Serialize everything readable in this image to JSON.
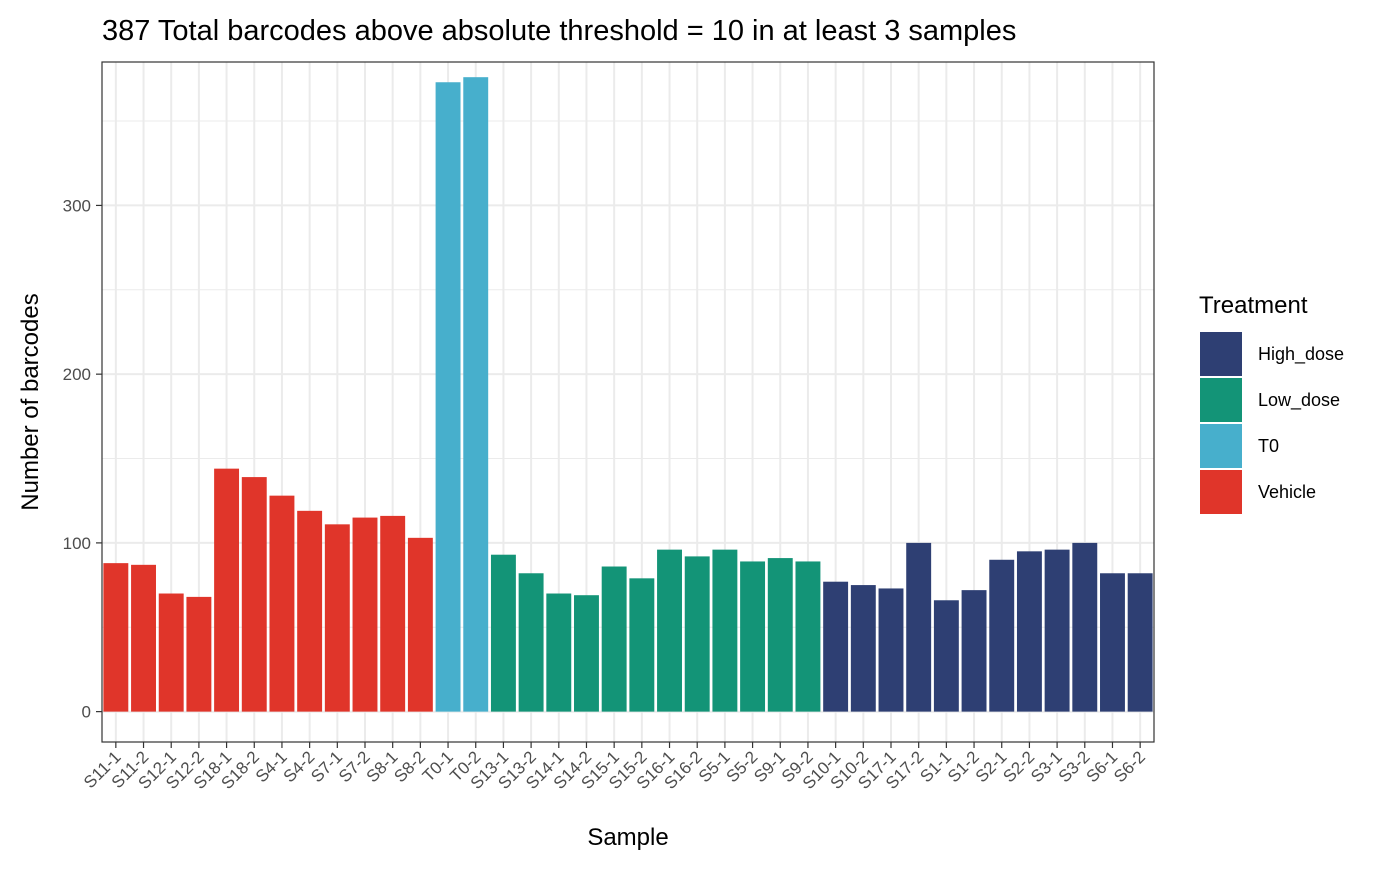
{
  "chart_data": {
    "type": "bar",
    "title": "387 Total barcodes above absolute threshold = 10 in at least 3 samples",
    "xlabel": "Sample",
    "ylabel": "Number of barcodes",
    "ylim": [
      -18,
      385
    ],
    "yticks": [
      0,
      100,
      200,
      300
    ],
    "grid": true,
    "legend_position": "right",
    "legend": {
      "title": "Treatment",
      "entries": [
        {
          "name": "High_dose",
          "color": "#2E3F73"
        },
        {
          "name": "Low_dose",
          "color": "#139477"
        },
        {
          "name": "T0",
          "color": "#47AFCC"
        },
        {
          "name": "Vehicle",
          "color": "#E0352A"
        }
      ]
    },
    "categories": [
      "S11-1",
      "S11-2",
      "S12-1",
      "S12-2",
      "S18-1",
      "S18-2",
      "S4-1",
      "S4-2",
      "S7-1",
      "S7-2",
      "S8-1",
      "S8-2",
      "T0-1",
      "T0-2",
      "S13-1",
      "S13-2",
      "S14-1",
      "S14-2",
      "S15-1",
      "S15-2",
      "S16-1",
      "S16-2",
      "S5-1",
      "S5-2",
      "S9-1",
      "S9-2",
      "S10-1",
      "S10-2",
      "S17-1",
      "S17-2",
      "S1-1",
      "S1-2",
      "S2-1",
      "S2-2",
      "S3-1",
      "S3-2",
      "S6-1",
      "S6-2"
    ],
    "values": [
      88,
      87,
      70,
      68,
      144,
      139,
      128,
      119,
      111,
      115,
      116,
      103,
      373,
      376,
      93,
      82,
      70,
      69,
      86,
      79,
      96,
      92,
      96,
      89,
      91,
      89,
      77,
      75,
      73,
      100,
      66,
      72,
      90,
      95,
      96,
      100,
      82,
      82
    ],
    "treatment": [
      "Vehicle",
      "Vehicle",
      "Vehicle",
      "Vehicle",
      "Vehicle",
      "Vehicle",
      "Vehicle",
      "Vehicle",
      "Vehicle",
      "Vehicle",
      "Vehicle",
      "Vehicle",
      "T0",
      "T0",
      "Low_dose",
      "Low_dose",
      "Low_dose",
      "Low_dose",
      "Low_dose",
      "Low_dose",
      "Low_dose",
      "Low_dose",
      "Low_dose",
      "Low_dose",
      "Low_dose",
      "Low_dose",
      "High_dose",
      "High_dose",
      "High_dose",
      "High_dose",
      "High_dose",
      "High_dose",
      "High_dose",
      "High_dose",
      "High_dose",
      "High_dose",
      "High_dose",
      "High_dose"
    ]
  }
}
